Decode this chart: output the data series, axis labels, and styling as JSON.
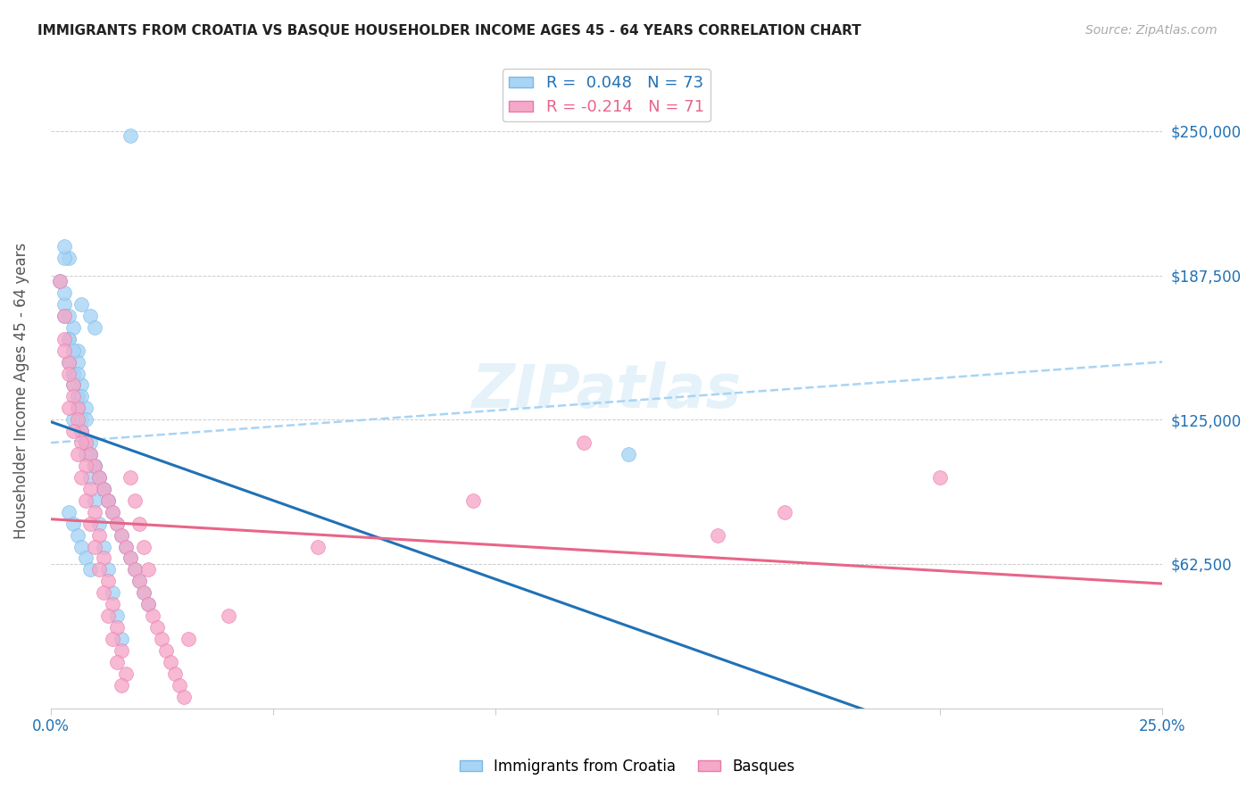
{
  "title": "IMMIGRANTS FROM CROATIA VS BASQUE HOUSEHOLDER INCOME AGES 45 - 64 YEARS CORRELATION CHART",
  "source": "Source: ZipAtlas.com",
  "ylabel": "Householder Income Ages 45 - 64 years",
  "xlim": [
    0.0,
    0.25
  ],
  "ylim": [
    0,
    275000
  ],
  "yticks": [
    62500,
    125000,
    187500,
    250000
  ],
  "ytick_labels": [
    "$62,500",
    "$125,000",
    "$187,500",
    "$250,000"
  ],
  "xticks": [
    0.0,
    0.05,
    0.1,
    0.15,
    0.2,
    0.25
  ],
  "xtick_labels": [
    "0.0%",
    "",
    "",
    "",
    "",
    "25.0%"
  ],
  "legend_r1": "R =  0.048   N = 73",
  "legend_r2": "R = -0.214   N = 71",
  "color_blue": "#a8d4f5",
  "color_blue_edge": "#7ab8e8",
  "color_pink": "#f5a8c8",
  "color_pink_edge": "#e87aaa",
  "line_blue_solid": "#2171b5",
  "line_blue_dash": "#a8d4f5",
  "line_pink": "#e8658a",
  "watermark": "ZIPatlas",
  "croatia_x": [
    0.018,
    0.002,
    0.004,
    0.003,
    0.005,
    0.006,
    0.007,
    0.005,
    0.004,
    0.003,
    0.006,
    0.007,
    0.008,
    0.009,
    0.01,
    0.005,
    0.006,
    0.007,
    0.008,
    0.009,
    0.01,
    0.011,
    0.012,
    0.013,
    0.004,
    0.005,
    0.006,
    0.007,
    0.008,
    0.009,
    0.003,
    0.004,
    0.005,
    0.006,
    0.007,
    0.008,
    0.009,
    0.01,
    0.011,
    0.012,
    0.013,
    0.014,
    0.015,
    0.016,
    0.017,
    0.018,
    0.019,
    0.02,
    0.021,
    0.022,
    0.003,
    0.004,
    0.005,
    0.006,
    0.007,
    0.008,
    0.009,
    0.01,
    0.011,
    0.012,
    0.013,
    0.014,
    0.015,
    0.016,
    0.003,
    0.004,
    0.005,
    0.006,
    0.007,
    0.008,
    0.009,
    0.13,
    0.01
  ],
  "croatia_y": [
    248000,
    185000,
    195000,
    175000,
    165000,
    155000,
    175000,
    145000,
    160000,
    170000,
    150000,
    140000,
    130000,
    170000,
    165000,
    125000,
    135000,
    120000,
    115000,
    110000,
    105000,
    100000,
    95000,
    90000,
    85000,
    80000,
    75000,
    70000,
    65000,
    60000,
    180000,
    150000,
    145000,
    135000,
    125000,
    115000,
    110000,
    105000,
    100000,
    95000,
    90000,
    85000,
    80000,
    75000,
    70000,
    65000,
    60000,
    55000,
    50000,
    45000,
    195000,
    160000,
    140000,
    130000,
    120000,
    110000,
    100000,
    90000,
    80000,
    70000,
    60000,
    50000,
    40000,
    30000,
    200000,
    170000,
    155000,
    145000,
    135000,
    125000,
    115000,
    110000,
    105000
  ],
  "basque_x": [
    0.002,
    0.003,
    0.004,
    0.005,
    0.006,
    0.007,
    0.008,
    0.009,
    0.01,
    0.011,
    0.012,
    0.013,
    0.014,
    0.015,
    0.016,
    0.017,
    0.018,
    0.019,
    0.02,
    0.021,
    0.022,
    0.023,
    0.024,
    0.025,
    0.026,
    0.027,
    0.028,
    0.029,
    0.03,
    0.031,
    0.003,
    0.004,
    0.005,
    0.006,
    0.007,
    0.008,
    0.009,
    0.01,
    0.011,
    0.012,
    0.013,
    0.014,
    0.015,
    0.016,
    0.017,
    0.018,
    0.019,
    0.02,
    0.021,
    0.022,
    0.003,
    0.004,
    0.005,
    0.006,
    0.007,
    0.008,
    0.009,
    0.01,
    0.011,
    0.012,
    0.013,
    0.014,
    0.015,
    0.016,
    0.165,
    0.2,
    0.15,
    0.095,
    0.06,
    0.04,
    0.12
  ],
  "basque_y": [
    185000,
    160000,
    150000,
    140000,
    130000,
    120000,
    115000,
    110000,
    105000,
    100000,
    95000,
    90000,
    85000,
    80000,
    75000,
    70000,
    65000,
    60000,
    55000,
    50000,
    45000,
    40000,
    35000,
    30000,
    25000,
    20000,
    15000,
    10000,
    5000,
    30000,
    170000,
    145000,
    135000,
    125000,
    115000,
    105000,
    95000,
    85000,
    75000,
    65000,
    55000,
    45000,
    35000,
    25000,
    15000,
    100000,
    90000,
    80000,
    70000,
    60000,
    155000,
    130000,
    120000,
    110000,
    100000,
    90000,
    80000,
    70000,
    60000,
    50000,
    40000,
    30000,
    20000,
    10000,
    85000,
    100000,
    75000,
    90000,
    70000,
    40000,
    115000
  ]
}
